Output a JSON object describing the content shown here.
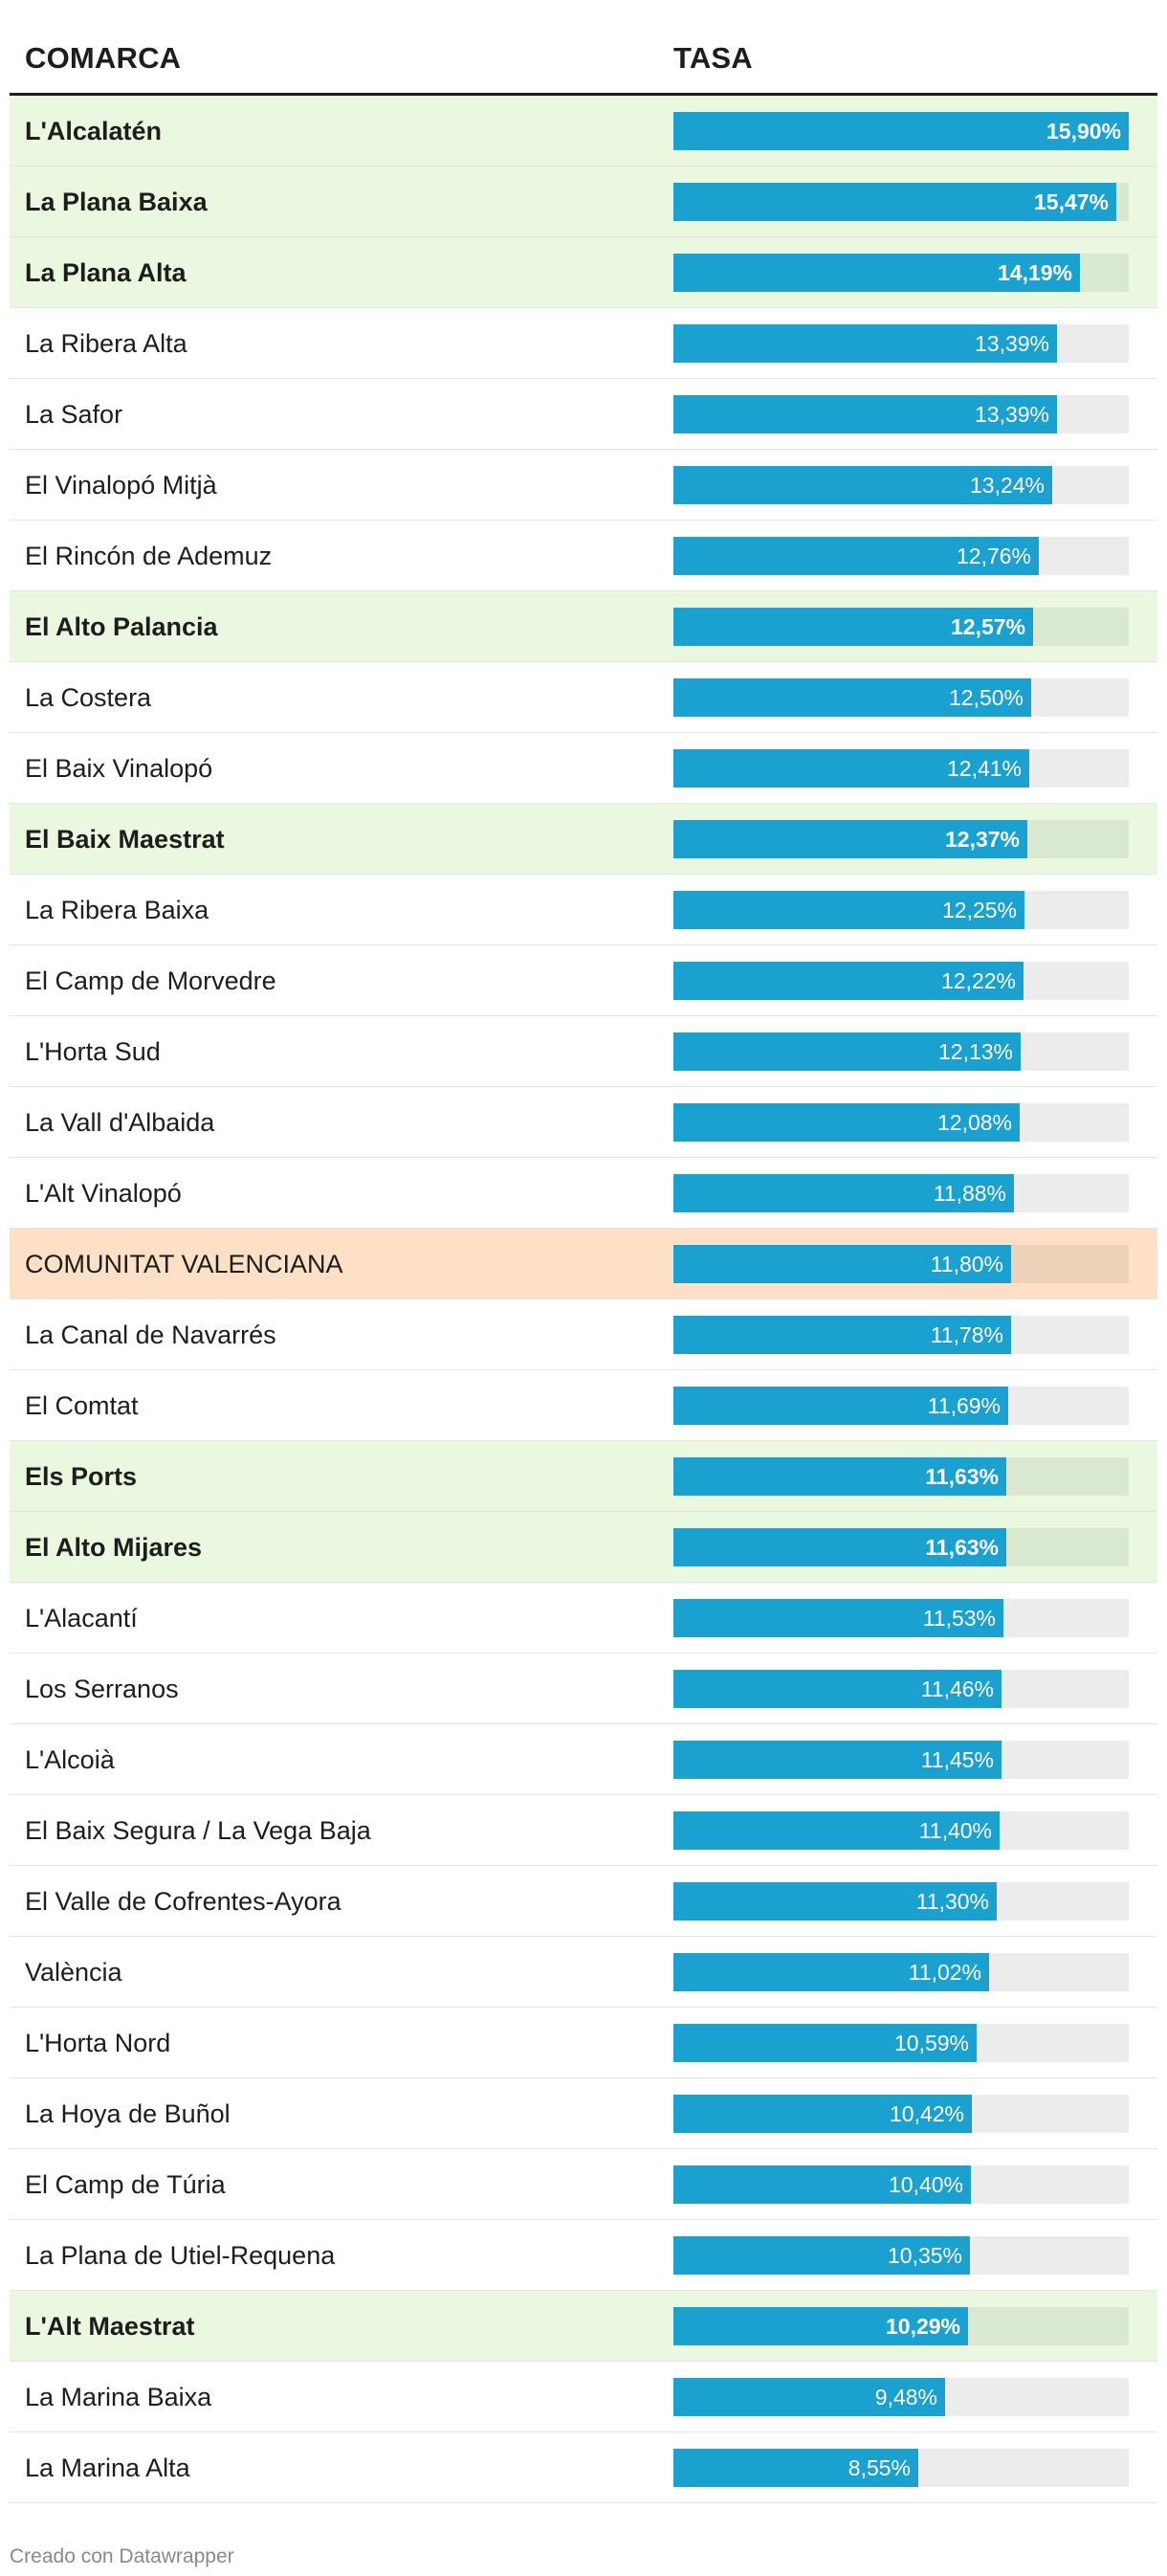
{
  "header": {
    "col_comarca": "COMARCA",
    "col_tasa": "TASA"
  },
  "footer": "Creado con Datawrapper",
  "colors": {
    "bar": "#1ba1d0",
    "highlight_row": "#e9f8df",
    "total_row": "#fde0c5",
    "track": "#ececec"
  },
  "chart_data": {
    "type": "bar",
    "orientation": "horizontal",
    "xlim": [
      0,
      15.9
    ],
    "columns": [
      "COMARCA",
      "TASA"
    ],
    "rows": [
      {
        "name": "L'Alcalatén",
        "value": 15.9,
        "label": "15,90%",
        "style": "highlight"
      },
      {
        "name": "La Plana Baixa",
        "value": 15.47,
        "label": "15,47%",
        "style": "highlight"
      },
      {
        "name": "La Plana Alta",
        "value": 14.19,
        "label": "14,19%",
        "style": "highlight"
      },
      {
        "name": "La Ribera Alta",
        "value": 13.39,
        "label": "13,39%",
        "style": "normal"
      },
      {
        "name": "La Safor",
        "value": 13.39,
        "label": "13,39%",
        "style": "normal"
      },
      {
        "name": "El Vinalopó Mitjà",
        "value": 13.24,
        "label": "13,24%",
        "style": "normal"
      },
      {
        "name": "El Rincón de Ademuz",
        "value": 12.76,
        "label": "12,76%",
        "style": "normal"
      },
      {
        "name": "El Alto Palancia",
        "value": 12.57,
        "label": "12,57%",
        "style": "highlight"
      },
      {
        "name": "La Costera",
        "value": 12.5,
        "label": "12,50%",
        "style": "normal"
      },
      {
        "name": "El Baix Vinalopó",
        "value": 12.41,
        "label": "12,41%",
        "style": "normal"
      },
      {
        "name": "El Baix Maestrat",
        "value": 12.37,
        "label": "12,37%",
        "style": "highlight"
      },
      {
        "name": "La Ribera Baixa",
        "value": 12.25,
        "label": "12,25%",
        "style": "normal"
      },
      {
        "name": "El Camp de Morvedre",
        "value": 12.22,
        "label": "12,22%",
        "style": "normal"
      },
      {
        "name": "L'Horta Sud",
        "value": 12.13,
        "label": "12,13%",
        "style": "normal"
      },
      {
        "name": "La Vall d'Albaida",
        "value": 12.08,
        "label": "12,08%",
        "style": "normal"
      },
      {
        "name": "L'Alt Vinalopó",
        "value": 11.88,
        "label": "11,88%",
        "style": "normal"
      },
      {
        "name": "COMUNITAT VALENCIANA",
        "value": 11.8,
        "label": "11,80%",
        "style": "total"
      },
      {
        "name": "La Canal de Navarrés",
        "value": 11.78,
        "label": "11,78%",
        "style": "normal"
      },
      {
        "name": "El Comtat",
        "value": 11.69,
        "label": "11,69%",
        "style": "normal"
      },
      {
        "name": "Els Ports",
        "value": 11.63,
        "label": "11,63%",
        "style": "highlight"
      },
      {
        "name": "El Alto Mijares",
        "value": 11.63,
        "label": "11,63%",
        "style": "highlight"
      },
      {
        "name": "L'Alacantí",
        "value": 11.53,
        "label": "11,53%",
        "style": "normal"
      },
      {
        "name": "Los Serranos",
        "value": 11.46,
        "label": "11,46%",
        "style": "normal"
      },
      {
        "name": "L'Alcoià",
        "value": 11.45,
        "label": "11,45%",
        "style": "normal"
      },
      {
        "name": "El Baix Segura / La Vega Baja",
        "value": 11.4,
        "label": "11,40%",
        "style": "normal"
      },
      {
        "name": "El Valle de Cofrentes-Ayora",
        "value": 11.3,
        "label": "11,30%",
        "style": "normal"
      },
      {
        "name": "València",
        "value": 11.02,
        "label": "11,02%",
        "style": "normal"
      },
      {
        "name": "L'Horta Nord",
        "value": 10.59,
        "label": "10,59%",
        "style": "normal"
      },
      {
        "name": "La Hoya de Buñol",
        "value": 10.42,
        "label": "10,42%",
        "style": "normal"
      },
      {
        "name": "El Camp de Túria",
        "value": 10.4,
        "label": "10,40%",
        "style": "normal"
      },
      {
        "name": "La Plana de Utiel-Requena",
        "value": 10.35,
        "label": "10,35%",
        "style": "normal"
      },
      {
        "name": "L'Alt Maestrat",
        "value": 10.29,
        "label": "10,29%",
        "style": "highlight"
      },
      {
        "name": "La Marina Baixa",
        "value": 9.48,
        "label": "9,48%",
        "style": "normal"
      },
      {
        "name": "La Marina Alta",
        "value": 8.55,
        "label": "8,55%",
        "style": "normal"
      }
    ]
  }
}
